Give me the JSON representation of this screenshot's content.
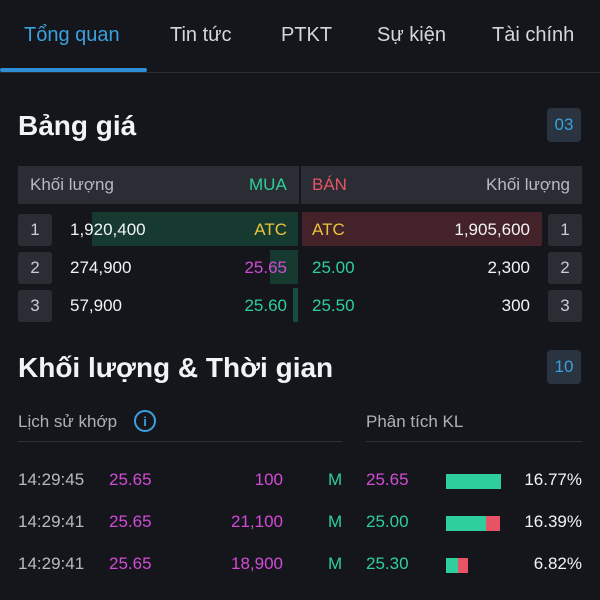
{
  "tabs": [
    {
      "label": "Tổng quan",
      "active": true
    },
    {
      "label": "Tin tức",
      "active": false
    },
    {
      "label": "PTKT",
      "active": false
    },
    {
      "label": "Sự kiện",
      "active": false
    },
    {
      "label": "Tài chính",
      "active": false
    }
  ],
  "order_book": {
    "title": "Bảng giá",
    "count": "03",
    "header": {
      "buy_volume": "Khối lượng",
      "buy": "MUA",
      "sell": "BÁN",
      "sell_volume": "Khối lượng"
    },
    "rows": [
      {
        "level": "1",
        "buy_volume": "1,920,400",
        "buy_price": "ATC",
        "sell_price": "ATC",
        "sell_volume": "1,905,600"
      },
      {
        "level": "2",
        "buy_volume": "274,900",
        "buy_price": "25.65",
        "sell_price": "25.00",
        "sell_volume": "2,300"
      },
      {
        "level": "3",
        "buy_volume": "57,900",
        "buy_price": "25.60",
        "sell_price": "25.50",
        "sell_volume": "300"
      }
    ]
  },
  "trades": {
    "title": "Khối lượng & Thời gian",
    "count": "10",
    "history_label": "Lịch sử khớp",
    "analysis_label": "Phân tích KL",
    "rows": [
      {
        "time": "14:29:45",
        "price": "25.65",
        "volume": "100",
        "side": "M"
      },
      {
        "time": "14:29:41",
        "price": "25.65",
        "volume": "21,100",
        "side": "M"
      },
      {
        "time": "14:29:41",
        "price": "25.65",
        "volume": "18,900",
        "side": "M"
      }
    ],
    "analysis": [
      {
        "price": "25.65",
        "percent": "16.77%",
        "share": 0.1677,
        "buy_fraction": 1.0
      },
      {
        "price": "25.00",
        "percent": "16.39%",
        "share": 0.1639,
        "buy_fraction": 0.73
      },
      {
        "price": "25.30",
        "percent": "6.82%",
        "share": 0.0682,
        "buy_fraction": 0.55
      }
    ]
  },
  "colors": {
    "accent": "#3aa0e0",
    "buy": "#2ecf9c",
    "sell": "#e85466",
    "ref": "#d24bd6",
    "atc": "#e9c33e"
  }
}
